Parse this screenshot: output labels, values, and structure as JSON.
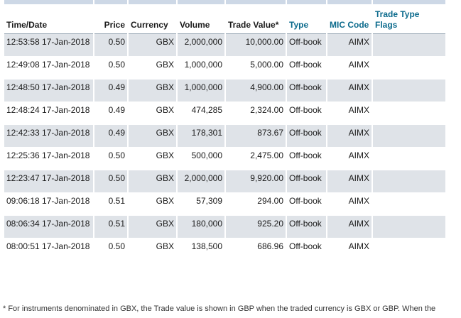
{
  "table": {
    "headers": {
      "time": "Time/Date",
      "price": "Price",
      "currency": "Currency",
      "volume": "Volume",
      "trade_value": "Trade Value*",
      "type": "Type",
      "mic": "MIC Code",
      "flags": "Trade Type Flags"
    },
    "rows": [
      {
        "time": "12:53:58 17-Jan-2018",
        "price": "0.50",
        "currency": "GBX",
        "volume": "2,000,000",
        "value": "10,000.00",
        "type": "Off-book",
        "mic": "AIMX",
        "flags": ""
      },
      {
        "time": "12:49:08 17-Jan-2018",
        "price": "0.50",
        "currency": "GBX",
        "volume": "1,000,000",
        "value": "5,000.00",
        "type": "Off-book",
        "mic": "AIMX",
        "flags": ""
      },
      {
        "time": "12:48:50 17-Jan-2018",
        "price": "0.49",
        "currency": "GBX",
        "volume": "1,000,000",
        "value": "4,900.00",
        "type": "Off-book",
        "mic": "AIMX",
        "flags": ""
      },
      {
        "time": "12:48:24 17-Jan-2018",
        "price": "0.49",
        "currency": "GBX",
        "volume": "474,285",
        "value": "2,324.00",
        "type": "Off-book",
        "mic": "AIMX",
        "flags": ""
      },
      {
        "time": "12:42:33 17-Jan-2018",
        "price": "0.49",
        "currency": "GBX",
        "volume": "178,301",
        "value": "873.67",
        "type": "Off-book",
        "mic": "AIMX",
        "flags": ""
      },
      {
        "time": "12:25:36 17-Jan-2018",
        "price": "0.50",
        "currency": "GBX",
        "volume": "500,000",
        "value": "2,475.00",
        "type": "Off-book",
        "mic": "AIMX",
        "flags": ""
      },
      {
        "time": "12:23:47 17-Jan-2018",
        "price": "0.50",
        "currency": "GBX",
        "volume": "2,000,000",
        "value": "9,920.00",
        "type": "Off-book",
        "mic": "AIMX",
        "flags": ""
      },
      {
        "time": "09:06:18 17-Jan-2018",
        "price": "0.51",
        "currency": "GBX",
        "volume": "57,309",
        "value": "294.00",
        "type": "Off-book",
        "mic": "AIMX",
        "flags": ""
      },
      {
        "time": "08:06:34 17-Jan-2018",
        "price": "0.51",
        "currency": "GBX",
        "volume": "180,000",
        "value": "925.20",
        "type": "Off-book",
        "mic": "AIMX",
        "flags": ""
      },
      {
        "time": "08:00:51 17-Jan-2018",
        "price": "0.50",
        "currency": "GBX",
        "volume": "138,500",
        "value": "686.96",
        "type": "Off-book",
        "mic": "AIMX",
        "flags": ""
      }
    ]
  },
  "footnote": "* For instruments denominated in GBX, the Trade value is shown in GBP when the traded currency is GBX or GBP. When the",
  "colors": {
    "row_shade": "#dfe3e8",
    "header_bar": "#cdd8e6",
    "link_header": "#0b6a8c"
  }
}
